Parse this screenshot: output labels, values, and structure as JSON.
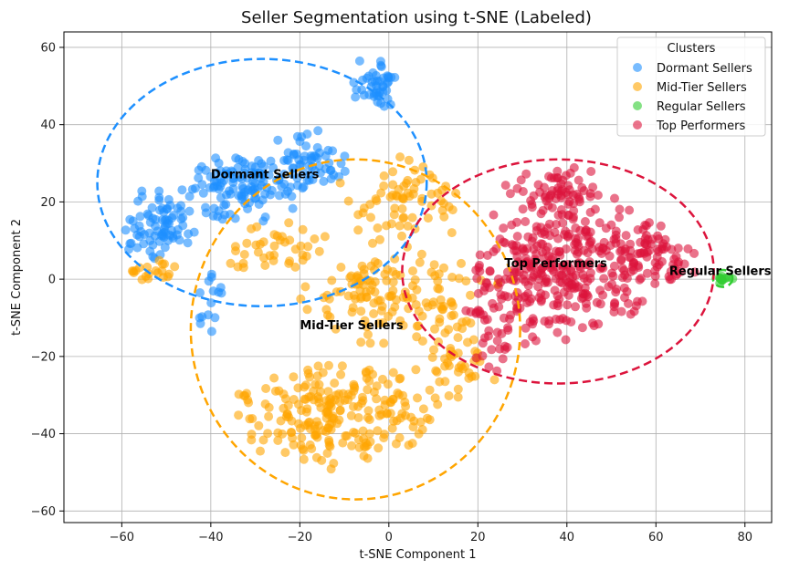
{
  "chart_data": {
    "type": "scatter",
    "title": "Seller Segmentation using t-SNE (Labeled)",
    "xlabel": "t-SNE Component 1",
    "ylabel": "t-SNE Component 2",
    "xlim": [
      -73,
      86
    ],
    "ylim": [
      -63,
      64
    ],
    "xticks": [
      -60,
      -40,
      -20,
      0,
      20,
      40,
      60,
      80
    ],
    "yticks": [
      -60,
      -40,
      -20,
      0,
      20,
      40,
      60
    ],
    "grid": true,
    "legend": {
      "title": "Clusters",
      "placement": "top-right"
    },
    "series": [
      {
        "name": "Dormant Sellers",
        "color": "#1E90FF",
        "label": "Dormant Sellers",
        "label_pos": [
          -40,
          27
        ],
        "ellipse": {
          "cx": -28.5,
          "cy": 25,
          "rx": 37,
          "ry": 32
        },
        "regions": [
          {
            "cx": -52,
            "cy": 14,
            "rx": 8,
            "ry": 9,
            "n": 80
          },
          {
            "cx": -33,
            "cy": 24,
            "rx": 13,
            "ry": 9,
            "n": 120
          },
          {
            "cx": -18,
            "cy": 31,
            "rx": 8,
            "ry": 8,
            "n": 60
          },
          {
            "cx": -3,
            "cy": 51,
            "rx": 5,
            "ry": 7,
            "n": 45
          },
          {
            "cx": -40,
            "cy": -5,
            "rx": 3,
            "ry": 9,
            "n": 15
          }
        ]
      },
      {
        "name": "Mid-Tier Sellers",
        "color": "#FFA500",
        "label": "Mid-Tier Sellers",
        "label_pos": [
          -20,
          -12
        ],
        "ellipse": {
          "cx": -7.5,
          "cy": -13,
          "rx": 37,
          "ry": 44
        },
        "regions": [
          {
            "cx": -12,
            "cy": -35,
            "rx": 22,
            "ry": 13,
            "n": 230
          },
          {
            "cx": 2,
            "cy": -5,
            "rx": 22,
            "ry": 11,
            "n": 140
          },
          {
            "cx": 3,
            "cy": 20,
            "rx": 14,
            "ry": 11,
            "n": 70
          },
          {
            "cx": -25,
            "cy": 8,
            "rx": 11,
            "ry": 8,
            "n": 40
          },
          {
            "cx": -53,
            "cy": 2,
            "rx": 5,
            "ry": 3,
            "n": 20
          },
          {
            "cx": 15,
            "cy": -22,
            "rx": 9,
            "ry": 8,
            "n": 40
          }
        ]
      },
      {
        "name": "Regular Sellers",
        "color": "#32CD32",
        "label": "Regular Sellers",
        "label_pos": [
          63,
          2
        ],
        "ellipse": {
          "cx": 75,
          "cy": 0.2,
          "rx": 2.2,
          "ry": 2.2
        },
        "regions": [
          {
            "cx": 75.5,
            "cy": 0.2,
            "rx": 1.6,
            "ry": 1.5,
            "n": 12
          }
        ]
      },
      {
        "name": "Top Performers",
        "color": "#DC143C",
        "label": "Top Performers",
        "label_pos": [
          26,
          4
        ],
        "ellipse": {
          "cx": 38,
          "cy": 2,
          "rx": 35,
          "ry": 29
        },
        "regions": [
          {
            "cx": 40,
            "cy": 4,
            "rx": 20,
            "ry": 18,
            "n": 330
          },
          {
            "cx": 26,
            "cy": -10,
            "rx": 9,
            "ry": 13,
            "n": 60
          },
          {
            "cx": 60,
            "cy": 5,
            "rx": 9,
            "ry": 9,
            "n": 60
          },
          {
            "cx": 37,
            "cy": 24,
            "rx": 11,
            "ry": 5,
            "n": 50
          }
        ]
      }
    ]
  }
}
